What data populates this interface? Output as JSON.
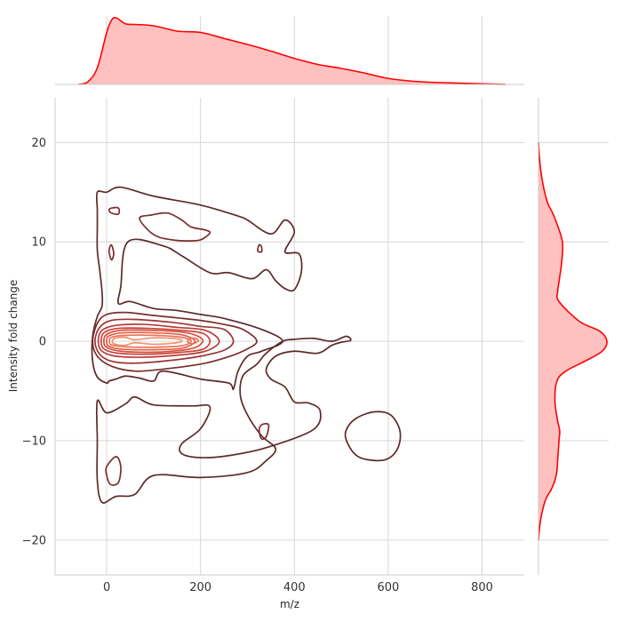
{
  "chart_data": {
    "type": "joint-kde",
    "xlabel": "m/z",
    "ylabel": "Intensity fold change",
    "xlim": [
      -110,
      890
    ],
    "ylim": [
      -23.5,
      24.5
    ],
    "x_ticks": [
      0,
      200,
      400,
      600,
      800
    ],
    "y_ticks": [
      -20,
      -10,
      0,
      10,
      20
    ],
    "grid": true,
    "colors": {
      "marginal_line": "#ff0000",
      "marginal_fill": "#ffc0c0",
      "contour_levels": [
        "#5c2a2a",
        "#7a2e2e",
        "#9b3434",
        "#b63c37",
        "#c9443c",
        "#d7503f",
        "#e05f46",
        "#ea7558",
        "#f2926e"
      ]
    },
    "marginal_x": {
      "x": [
        -60,
        -40,
        -20,
        0,
        10,
        20,
        40,
        60,
        100,
        150,
        200,
        250,
        300,
        350,
        400,
        450,
        500,
        550,
        600,
        650,
        700,
        750,
        800,
        850
      ],
      "density": [
        0.0,
        0.04,
        0.25,
        0.78,
        0.96,
        1.0,
        0.91,
        0.9,
        0.88,
        0.8,
        0.78,
        0.69,
        0.6,
        0.5,
        0.39,
        0.3,
        0.24,
        0.17,
        0.09,
        0.05,
        0.03,
        0.02,
        0.01,
        0.0
      ]
    },
    "marginal_y": {
      "y": [
        -20,
        -18,
        -16,
        -15,
        -14,
        -13,
        -12,
        -11,
        -10,
        -9,
        -8,
        -6,
        -4,
        -3,
        -2,
        -1,
        0,
        1,
        2,
        4,
        5,
        6,
        8,
        10,
        12,
        13,
        14,
        16,
        18,
        20
      ],
      "density": [
        0.0,
        0.03,
        0.1,
        0.18,
        0.24,
        0.27,
        0.28,
        0.29,
        0.3,
        0.31,
        0.28,
        0.24,
        0.27,
        0.4,
        0.68,
        0.93,
        1.0,
        0.9,
        0.6,
        0.3,
        0.28,
        0.3,
        0.34,
        0.35,
        0.26,
        0.2,
        0.13,
        0.06,
        0.02,
        0.0
      ]
    },
    "contours": [
      {
        "level": 0,
        "points": [
          [
            0,
            15
          ],
          [
            30,
            15.5
          ],
          [
            100,
            14.6
          ],
          [
            200,
            13.7
          ],
          [
            280,
            12.6
          ],
          [
            300,
            12.2
          ],
          [
            350,
            10.8
          ],
          [
            380,
            12.2
          ],
          [
            400,
            11
          ],
          [
            380,
            9
          ],
          [
            410,
            8.8
          ],
          [
            415,
            7
          ],
          [
            400,
            5.2
          ],
          [
            380,
            5.3
          ],
          [
            360,
            6.1
          ],
          [
            340,
            7.2
          ],
          [
            310,
            6.3
          ],
          [
            260,
            6.9
          ],
          [
            220,
            6.9
          ],
          [
            160,
            8.6
          ],
          [
            120,
            9.6
          ],
          [
            45,
            10
          ],
          [
            30,
            5.5
          ],
          [
            25,
            3.8
          ],
          [
            50,
            4
          ],
          [
            100,
            3.3
          ],
          [
            150,
            3.1
          ],
          [
            200,
            2.7
          ],
          [
            250,
            2.3
          ],
          [
            330,
            1.2
          ],
          [
            375,
            0
          ],
          [
            330,
            -1
          ],
          [
            300,
            -1.5
          ],
          [
            280,
            -3
          ],
          [
            270,
            -4.8
          ],
          [
            260,
            -4.2
          ],
          [
            200,
            -3.8
          ],
          [
            120,
            -3
          ],
          [
            100,
            -4
          ],
          [
            70,
            -3.7
          ],
          [
            40,
            -3.5
          ],
          [
            20,
            -3.8
          ],
          [
            5,
            -4
          ],
          [
            0,
            -4.2
          ],
          [
            -20,
            -3.6
          ],
          [
            -30,
            -2
          ],
          [
            -30,
            0.5
          ],
          [
            -20,
            2.5
          ],
          [
            -10,
            3.5
          ],
          [
            -10,
            5
          ],
          [
            -15,
            7.2
          ],
          [
            -20,
            9.2
          ],
          [
            -20,
            11.6
          ],
          [
            -20,
            13.2
          ],
          [
            -20,
            15
          ],
          [
            0,
            15
          ]
        ]
      },
      {
        "level": 0,
        "points": [
          [
            -20,
            -6
          ],
          [
            0,
            -7.2
          ],
          [
            40,
            -6.3
          ],
          [
            60,
            -5.6
          ],
          [
            100,
            -6.4
          ],
          [
            180,
            -6.5
          ],
          [
            220,
            -6.6
          ],
          [
            200,
            -8.8
          ],
          [
            160,
            -10.3
          ],
          [
            160,
            -11.3
          ],
          [
            200,
            -11.7
          ],
          [
            260,
            -11.5
          ],
          [
            340,
            -10.7
          ],
          [
            440,
            -8.9
          ],
          [
            455,
            -7
          ],
          [
            430,
            -6.2
          ],
          [
            400,
            -6.1
          ],
          [
            380,
            -4.6
          ],
          [
            350,
            -3.8
          ],
          [
            340,
            -2.8
          ],
          [
            360,
            -1.5
          ],
          [
            400,
            -1
          ],
          [
            450,
            -1.2
          ],
          [
            480,
            -0.4
          ],
          [
            500,
            -0.1
          ],
          [
            520,
            0.1
          ],
          [
            510,
            0.5
          ],
          [
            480,
            0
          ],
          [
            440,
            0.3
          ],
          [
            400,
            0.2
          ],
          [
            375,
            0
          ],
          [
            340,
            -1.2
          ],
          [
            320,
            -2.3
          ],
          [
            290,
            -3.5
          ],
          [
            285,
            -5.5
          ],
          [
            300,
            -7.4
          ],
          [
            330,
            -9.5
          ],
          [
            360,
            -10.8
          ],
          [
            340,
            -12
          ],
          [
            300,
            -13.2
          ],
          [
            200,
            -13.7
          ],
          [
            100,
            -13.5
          ],
          [
            60,
            -15.4
          ],
          [
            20,
            -15.6
          ],
          [
            -10,
            -16.2
          ],
          [
            -20,
            -14
          ],
          [
            -20,
            -10
          ],
          [
            -20,
            -6
          ]
        ]
      },
      {
        "level": 0,
        "points": [
          [
            510,
            -9
          ],
          [
            530,
            -7.8
          ],
          [
            570,
            -7.1
          ],
          [
            605,
            -7.4
          ],
          [
            625,
            -9
          ],
          [
            620,
            -10.8
          ],
          [
            595,
            -11.9
          ],
          [
            555,
            -11.9
          ],
          [
            530,
            -11.4
          ],
          [
            512,
            -10.1
          ],
          [
            510,
            -9
          ]
        ]
      },
      {
        "level": 1,
        "points": [
          [
            70,
            12.4
          ],
          [
            95,
            12.7
          ],
          [
            130,
            12.9
          ],
          [
            160,
            12.2
          ],
          [
            180,
            11.5
          ],
          [
            210,
            11.2
          ],
          [
            220,
            10.9
          ],
          [
            200,
            10.2
          ],
          [
            170,
            10.1
          ],
          [
            140,
            10.2
          ],
          [
            110,
            10.5
          ],
          [
            88,
            11.2
          ],
          [
            70,
            12.4
          ]
        ]
      },
      {
        "level": 1,
        "points": [
          [
            5,
            13.2
          ],
          [
            10,
            12.9
          ],
          [
            25,
            12.8
          ],
          [
            25,
            13.4
          ],
          [
            10,
            13.4
          ],
          [
            5,
            13.2
          ]
        ]
      },
      {
        "level": 1,
        "points": [
          [
            5,
            9.1
          ],
          [
            10,
            9.7
          ],
          [
            15,
            8.8
          ],
          [
            10,
            8.2
          ],
          [
            5,
            9.1
          ]
        ]
      },
      {
        "level": 1,
        "points": [
          [
            325,
            9.7
          ],
          [
            330,
            9.5
          ],
          [
            330,
            9
          ],
          [
            322,
            9.1
          ],
          [
            325,
            9.7
          ]
        ]
      },
      {
        "level": 1,
        "points": [
          [
            -20,
            1.8
          ],
          [
            0,
            2.7
          ],
          [
            40,
            2.9
          ],
          [
            100,
            2.6
          ],
          [
            200,
            2.1
          ],
          [
            250,
            1.7
          ],
          [
            290,
            1.2
          ],
          [
            320,
            0
          ],
          [
            290,
            -1
          ],
          [
            250,
            -1.7
          ],
          [
            200,
            -2.3
          ],
          [
            120,
            -2.8
          ],
          [
            60,
            -3
          ],
          [
            10,
            -2.5
          ],
          [
            -20,
            -1.5
          ],
          [
            -30,
            0
          ],
          [
            -20,
            1.8
          ]
        ]
      },
      {
        "level": 2,
        "points": [
          [
            -15,
            1.4
          ],
          [
            10,
            2.1
          ],
          [
            60,
            2.2
          ],
          [
            140,
            1.9
          ],
          [
            200,
            1.5
          ],
          [
            250,
            1.2
          ],
          [
            270,
            0
          ],
          [
            250,
            -0.9
          ],
          [
            200,
            -1.5
          ],
          [
            140,
            -1.9
          ],
          [
            60,
            -2.2
          ],
          [
            10,
            -2
          ],
          [
            -15,
            -1.3
          ],
          [
            -25,
            0
          ],
          [
            -15,
            1.4
          ]
        ]
      },
      {
        "level": 3,
        "points": [
          [
            -10,
            1.1
          ],
          [
            20,
            1.6
          ],
          [
            80,
            1.7
          ],
          [
            150,
            1.4
          ],
          [
            210,
            1.1
          ],
          [
            240,
            0
          ],
          [
            210,
            -1
          ],
          [
            150,
            -1.4
          ],
          [
            80,
            -1.6
          ],
          [
            20,
            -1.5
          ],
          [
            -10,
            -1
          ],
          [
            -18,
            0
          ],
          [
            -10,
            1.1
          ]
        ]
      },
      {
        "level": 4,
        "points": [
          [
            -5,
            0.9
          ],
          [
            25,
            1.3
          ],
          [
            90,
            1.3
          ],
          [
            160,
            1.1
          ],
          [
            205,
            0.8
          ],
          [
            220,
            0
          ],
          [
            205,
            -0.8
          ],
          [
            160,
            -1.1
          ],
          [
            90,
            -1.3
          ],
          [
            25,
            -1.2
          ],
          [
            -5,
            -0.8
          ],
          [
            -12,
            0
          ],
          [
            -5,
            0.9
          ]
        ]
      },
      {
        "level": 5,
        "points": [
          [
            0,
            0.7
          ],
          [
            30,
            1.1
          ],
          [
            100,
            1.1
          ],
          [
            165,
            0.9
          ],
          [
            195,
            0.5
          ],
          [
            205,
            0
          ],
          [
            190,
            -0.6
          ],
          [
            160,
            -0.9
          ],
          [
            100,
            -1.1
          ],
          [
            30,
            -1
          ],
          [
            0,
            -0.6
          ],
          [
            -6,
            0
          ],
          [
            0,
            0.7
          ]
        ]
      },
      {
        "level": 6,
        "points": [
          [
            5,
            0.55
          ],
          [
            35,
            0.85
          ],
          [
            100,
            0.85
          ],
          [
            160,
            0.65
          ],
          [
            188,
            0
          ],
          [
            160,
            -0.7
          ],
          [
            100,
            -0.85
          ],
          [
            35,
            -0.8
          ],
          [
            5,
            -0.5
          ],
          [
            0,
            0
          ],
          [
            5,
            0.55
          ]
        ]
      },
      {
        "level": 7,
        "points": [
          [
            10,
            0.4
          ],
          [
            40,
            0.6
          ],
          [
            100,
            0.6
          ],
          [
            160,
            0.4
          ],
          [
            180,
            0
          ],
          [
            160,
            -0.45
          ],
          [
            100,
            -0.6
          ],
          [
            40,
            -0.55
          ],
          [
            10,
            -0.35
          ],
          [
            6,
            0
          ],
          [
            10,
            0.4
          ]
        ]
      },
      {
        "level": 7,
        "points": [
          [
            180,
            0.3
          ],
          [
            192,
            0.25
          ],
          [
            195,
            0
          ],
          [
            182,
            -0.25
          ],
          [
            172,
            0
          ],
          [
            180,
            0.3
          ]
        ]
      },
      {
        "level": 8,
        "points": [
          [
            18,
            0.3
          ],
          [
            40,
            0.4
          ],
          [
            60,
            0.15
          ],
          [
            100,
            0.35
          ],
          [
            150,
            0.25
          ],
          [
            160,
            0
          ],
          [
            140,
            -0.2
          ],
          [
            100,
            -0.3
          ],
          [
            60,
            -0.15
          ],
          [
            40,
            -0.4
          ],
          [
            18,
            -0.3
          ],
          [
            12,
            0
          ],
          [
            18,
            0.3
          ]
        ]
      },
      {
        "level": 1,
        "points": [
          [
            0,
            -12.6
          ],
          [
            20,
            -11.6
          ],
          [
            30,
            -12.6
          ],
          [
            25,
            -14.2
          ],
          [
            8,
            -14.4
          ],
          [
            0,
            -13.5
          ],
          [
            0,
            -12.6
          ]
        ]
      },
      {
        "level": 1,
        "points": [
          [
            330,
            -8.4
          ],
          [
            345,
            -8.4
          ],
          [
            340,
            -9.6
          ],
          [
            330,
            -9.8
          ],
          [
            325,
            -9
          ],
          [
            330,
            -8.4
          ]
        ]
      }
    ]
  }
}
